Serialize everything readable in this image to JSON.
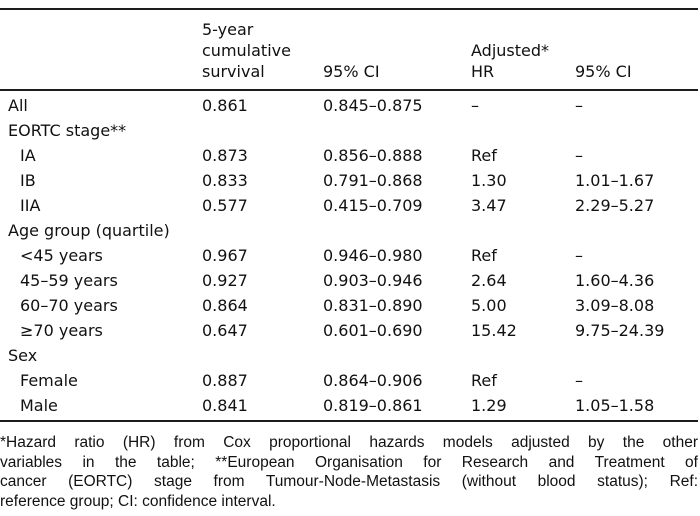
{
  "colors": {
    "background": "#ffffff",
    "text": "#111111",
    "rule": "#1c1c1c"
  },
  "table": {
    "header": {
      "col1": "",
      "col2": "5-year\ncumulative\nsurvival",
      "col3": "95% CI",
      "col4": "Adjusted*\nHR",
      "col5": "95% CI"
    },
    "rows": [
      {
        "label": "All",
        "survival": "0.861",
        "ci": "0.845–0.875",
        "hr": "–",
        "hr_ci": "–"
      },
      {
        "label": "EORTC stage**",
        "survival": "",
        "ci": "",
        "hr": "",
        "hr_ci": ""
      },
      {
        "label": "IA",
        "survival": "0.873",
        "ci": "0.856–0.888",
        "hr": "Ref",
        "hr_ci": "–"
      },
      {
        "label": "IB",
        "survival": "0.833",
        "ci": "0.791–0.868",
        "hr": "1.30",
        "hr_ci": "1.01–1.67"
      },
      {
        "label": "IIA",
        "survival": "0.577",
        "ci": "0.415–0.709",
        "hr": "3.47",
        "hr_ci": "2.29–5.27"
      },
      {
        "label": "Age group (quartile)",
        "survival": "",
        "ci": "",
        "hr": "",
        "hr_ci": ""
      },
      {
        "label": "<45 years",
        "survival": "0.967",
        "ci": "0.946–0.980",
        "hr": "Ref",
        "hr_ci": "–"
      },
      {
        "label": "45–59 years",
        "survival": "0.927",
        "ci": "0.903–0.946",
        "hr": "2.64",
        "hr_ci": "1.60–4.36"
      },
      {
        "label": "60–70 years",
        "survival": "0.864",
        "ci": "0.831–0.890",
        "hr": "5.00",
        "hr_ci": "3.09–8.08"
      },
      {
        "label": "≥70 years",
        "survival": "0.647",
        "ci": "0.601–0.690",
        "hr": "15.42",
        "hr_ci": "9.75–24.39"
      },
      {
        "label": "Sex",
        "survival": "",
        "ci": "",
        "hr": "",
        "hr_ci": ""
      },
      {
        "label": "Female",
        "survival": "0.887",
        "ci": "0.864–0.906",
        "hr": "Ref",
        "hr_ci": "–"
      },
      {
        "label": "Male",
        "survival": "0.841",
        "ci": "0.819–0.861",
        "hr": "1.29",
        "hr_ci": "1.05–1.58"
      }
    ]
  },
  "footnote": {
    "lines": [
      "*Hazard ratio (HR) from Cox proportional hazards models adjusted by the other",
      "variables in the table; **European Organisation for Research and Treatment of",
      "cancer (EORTC) stage from Tumour-Node-Metastasis (without blood status); Ref:",
      "reference group; CI: confidence interval."
    ]
  }
}
